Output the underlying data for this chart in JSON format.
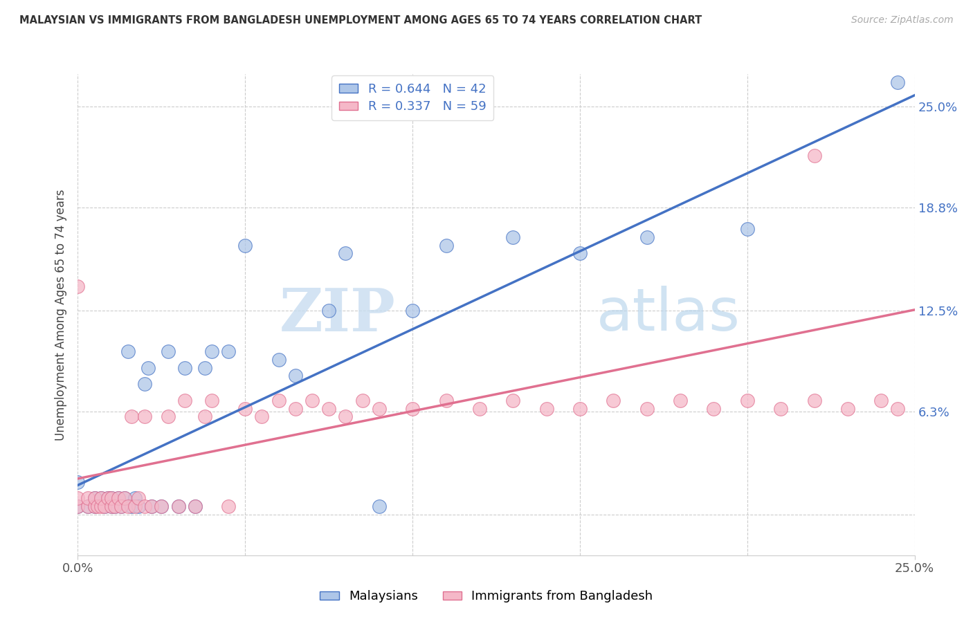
{
  "title": "MALAYSIAN VS IMMIGRANTS FROM BANGLADESH UNEMPLOYMENT AMONG AGES 65 TO 74 YEARS CORRELATION CHART",
  "source": "Source: ZipAtlas.com",
  "ylabel": "Unemployment Among Ages 65 to 74 years",
  "legend_labels": [
    "Malaysians",
    "Immigrants from Bangladesh"
  ],
  "r_malaysian": 0.644,
  "n_malaysian": 42,
  "r_bangladesh": 0.337,
  "n_bangladesh": 59,
  "xlim": [
    0,
    0.25
  ],
  "ylim": [
    -0.025,
    0.27
  ],
  "color_malaysian": "#aec6e8",
  "color_bangladesh": "#f5b8c8",
  "line_color_malaysian": "#4472c4",
  "line_color_bangladesh": "#e07090",
  "watermark_zip": "ZIP",
  "watermark_atlas": "atlas",
  "reg_malaysian": [
    0.018,
    0.956
  ],
  "reg_bangladesh": [
    0.022,
    0.414
  ],
  "malaysian_x": [
    0.0,
    0.0,
    0.003,
    0.005,
    0.005,
    0.007,
    0.008,
    0.009,
    0.01,
    0.01,
    0.011,
    0.012,
    0.013,
    0.014,
    0.015,
    0.016,
    0.017,
    0.018,
    0.02,
    0.021,
    0.022,
    0.025,
    0.027,
    0.03,
    0.032,
    0.035,
    0.038,
    0.04,
    0.045,
    0.05,
    0.06,
    0.065,
    0.075,
    0.08,
    0.09,
    0.1,
    0.11,
    0.13,
    0.15,
    0.17,
    0.2,
    0.245
  ],
  "malaysian_y": [
    0.005,
    0.02,
    0.005,
    0.005,
    0.01,
    0.01,
    0.005,
    0.01,
    0.005,
    0.01,
    0.005,
    0.01,
    0.005,
    0.01,
    0.1,
    0.005,
    0.01,
    0.005,
    0.08,
    0.09,
    0.005,
    0.005,
    0.1,
    0.005,
    0.09,
    0.005,
    0.09,
    0.1,
    0.1,
    0.165,
    0.095,
    0.085,
    0.125,
    0.16,
    0.005,
    0.125,
    0.165,
    0.17,
    0.16,
    0.17,
    0.175,
    0.265
  ],
  "bangladesh_x": [
    0.0,
    0.0,
    0.0,
    0.003,
    0.003,
    0.005,
    0.005,
    0.006,
    0.007,
    0.007,
    0.008,
    0.009,
    0.01,
    0.01,
    0.011,
    0.012,
    0.013,
    0.014,
    0.015,
    0.016,
    0.017,
    0.018,
    0.02,
    0.02,
    0.022,
    0.025,
    0.027,
    0.03,
    0.032,
    0.035,
    0.038,
    0.04,
    0.045,
    0.05,
    0.055,
    0.06,
    0.065,
    0.07,
    0.075,
    0.08,
    0.085,
    0.09,
    0.1,
    0.11,
    0.12,
    0.13,
    0.14,
    0.15,
    0.16,
    0.17,
    0.18,
    0.19,
    0.2,
    0.21,
    0.22,
    0.23,
    0.24,
    0.245,
    0.22
  ],
  "bangladesh_y": [
    0.005,
    0.01,
    0.14,
    0.005,
    0.01,
    0.005,
    0.01,
    0.005,
    0.005,
    0.01,
    0.005,
    0.01,
    0.005,
    0.01,
    0.005,
    0.01,
    0.005,
    0.01,
    0.005,
    0.06,
    0.005,
    0.01,
    0.005,
    0.06,
    0.005,
    0.005,
    0.06,
    0.005,
    0.07,
    0.005,
    0.06,
    0.07,
    0.005,
    0.065,
    0.06,
    0.07,
    0.065,
    0.07,
    0.065,
    0.06,
    0.07,
    0.065,
    0.065,
    0.07,
    0.065,
    0.07,
    0.065,
    0.065,
    0.07,
    0.065,
    0.07,
    0.065,
    0.07,
    0.065,
    0.07,
    0.065,
    0.07,
    0.065,
    0.22
  ]
}
